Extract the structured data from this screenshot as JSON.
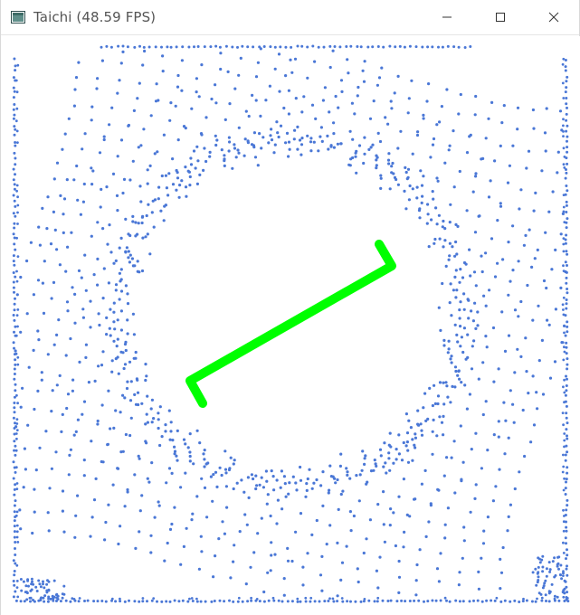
{
  "window": {
    "title": "Taichi (48.59 FPS)",
    "controls": {
      "minimize_icon": "minimize-icon",
      "maximize_icon": "maximize-icon",
      "close_icon": "close-icon"
    }
  },
  "scene": {
    "background_color": "#ffffff",
    "particle_color": "#4a77d6",
    "rigid_body_color": "#00ff00",
    "obstacle": "circle"
  }
}
